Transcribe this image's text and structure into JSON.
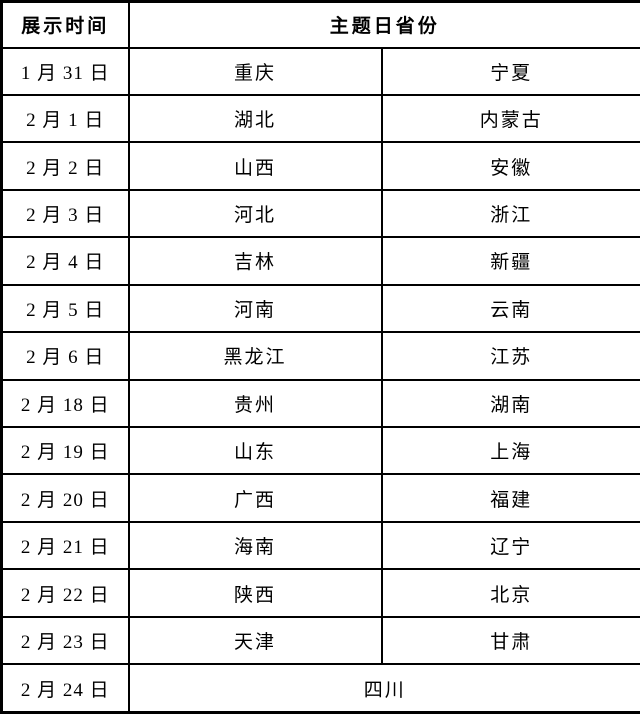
{
  "table": {
    "header": {
      "time": "展示时间",
      "province": "主题日省份"
    },
    "rows": [
      {
        "date": "1 月 31 日",
        "provinces": [
          "重庆",
          "宁夏"
        ]
      },
      {
        "date": "2 月 1 日",
        "provinces": [
          "湖北",
          "内蒙古"
        ]
      },
      {
        "date": "2 月 2 日",
        "provinces": [
          "山西",
          "安徽"
        ]
      },
      {
        "date": "2 月 3 日",
        "provinces": [
          "河北",
          "浙江"
        ]
      },
      {
        "date": "2 月 4 日",
        "provinces": [
          "吉林",
          "新疆"
        ]
      },
      {
        "date": "2 月 5 日",
        "provinces": [
          "河南",
          "云南"
        ]
      },
      {
        "date": "2 月 6 日",
        "provinces": [
          "黑龙江",
          "江苏"
        ]
      },
      {
        "date": "2 月 18 日",
        "provinces": [
          "贵州",
          "湖南"
        ]
      },
      {
        "date": "2 月 19 日",
        "provinces": [
          "山东",
          "上海"
        ]
      },
      {
        "date": "2 月 20 日",
        "provinces": [
          "广西",
          "福建"
        ]
      },
      {
        "date": "2 月 21 日",
        "provinces": [
          "海南",
          "辽宁"
        ]
      },
      {
        "date": "2 月 22 日",
        "provinces": [
          "陕西",
          "北京"
        ]
      },
      {
        "date": "2 月 23 日",
        "provinces": [
          "天津",
          "甘肃"
        ]
      },
      {
        "date": "2 月 24 日",
        "provinces": [
          "四川"
        ]
      }
    ]
  }
}
